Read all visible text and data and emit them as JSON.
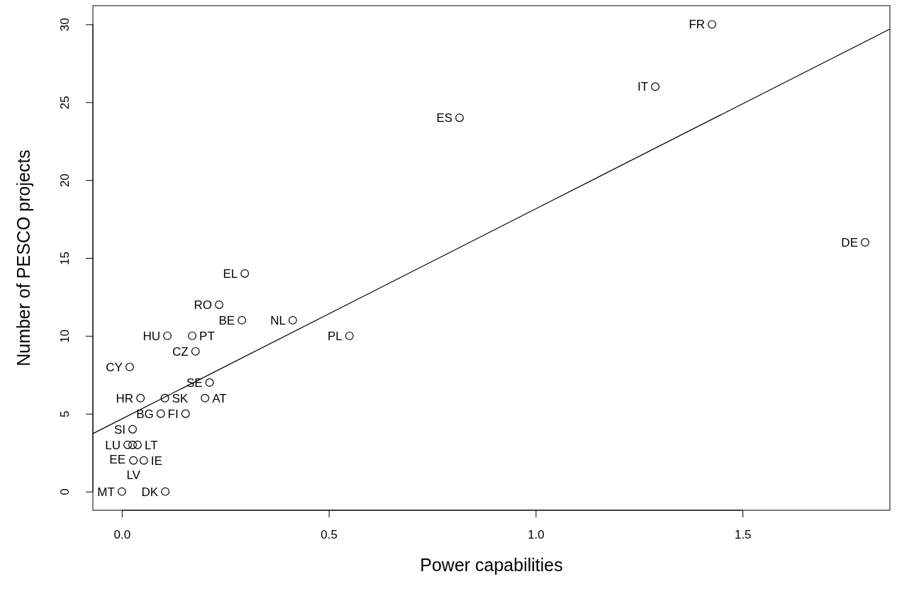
{
  "chart_data": {
    "type": "scatter",
    "xlabel": "Power capabilities",
    "ylabel": "Number of PESCO projects",
    "xlim": [
      -0.07,
      1.856
    ],
    "ylim": [
      -1.2,
      31.2
    ],
    "xticks": [
      {
        "value": 0,
        "label": "0.0"
      },
      {
        "value": 0.5,
        "label": "0.5"
      },
      {
        "value": 1,
        "label": "1.0"
      },
      {
        "value": 1.5,
        "label": "1.5"
      }
    ],
    "yticks": [
      0,
      5,
      10,
      15,
      20,
      25,
      30
    ],
    "grid": false,
    "marker": "circle",
    "series": [
      {
        "color": "#000000",
        "x": [
          1.426,
          1.289,
          0.816,
          1.796,
          0.297,
          0.235,
          0.29,
          0.413,
          0.55,
          0.11,
          0.17,
          0.178,
          0.019,
          0.212,
          0.045,
          0.104,
          0.201,
          0.094,
          0.154,
          0.026,
          0.014,
          0.026,
          0.038,
          0.028,
          0.053,
          0.0,
          0.105
        ],
        "values": [
          30,
          26,
          24,
          16,
          14,
          12,
          11,
          11,
          10,
          10,
          10,
          9,
          8,
          7,
          6,
          6,
          6,
          5,
          5,
          4,
          3,
          3,
          3,
          2,
          2,
          0,
          0
        ]
      },
      {
        "type": "line",
        "color": "#000000",
        "line_style": "solid",
        "marker": "none",
        "x": [
          -0.07,
          1.856
        ],
        "values": [
          3.72,
          29.7
        ]
      }
    ],
    "annotations": [
      {
        "text": "FR",
        "x": 1.426,
        "y": 30
      },
      {
        "text": "IT",
        "x": 1.289,
        "y": 26
      },
      {
        "text": "ES",
        "x": 0.816,
        "y": 24
      },
      {
        "text": "DE",
        "x": 1.796,
        "y": 16
      },
      {
        "text": "EL",
        "x": 0.297,
        "y": 14
      },
      {
        "text": "RO",
        "x": 0.235,
        "y": 12
      },
      {
        "text": "BE",
        "x": 0.29,
        "y": 11
      },
      {
        "text": "NL",
        "x": 0.413,
        "y": 11
      },
      {
        "text": "PL",
        "x": 0.55,
        "y": 10
      },
      {
        "text": "HU",
        "x": 0.11,
        "y": 10
      },
      {
        "text": "PT",
        "x": 0.17,
        "y": 10
      },
      {
        "text": "CZ",
        "x": 0.178,
        "y": 9
      },
      {
        "text": "CY",
        "x": 0.019,
        "y": 8
      },
      {
        "text": "SE",
        "x": 0.212,
        "y": 7
      },
      {
        "text": "HR",
        "x": 0.045,
        "y": 6
      },
      {
        "text": "SK",
        "x": 0.104,
        "y": 6
      },
      {
        "text": "AT",
        "x": 0.201,
        "y": 6
      },
      {
        "text": "BG",
        "x": 0.094,
        "y": 5
      },
      {
        "text": "FI",
        "x": 0.154,
        "y": 5
      },
      {
        "text": "SI",
        "x": 0.026,
        "y": 4
      },
      {
        "text": "LU",
        "x": 0.014,
        "y": 3
      },
      {
        "text": "EE",
        "x": 0.026,
        "y": 3
      },
      {
        "text": "LT",
        "x": 0.038,
        "y": 3
      },
      {
        "text": "LV",
        "x": 0.028,
        "y": 2
      },
      {
        "text": "IE",
        "x": 0.053,
        "y": 2
      },
      {
        "text": "MT",
        "x": 0.0,
        "y": 0
      },
      {
        "text": "DK",
        "x": 0.105,
        "y": 0
      }
    ]
  }
}
